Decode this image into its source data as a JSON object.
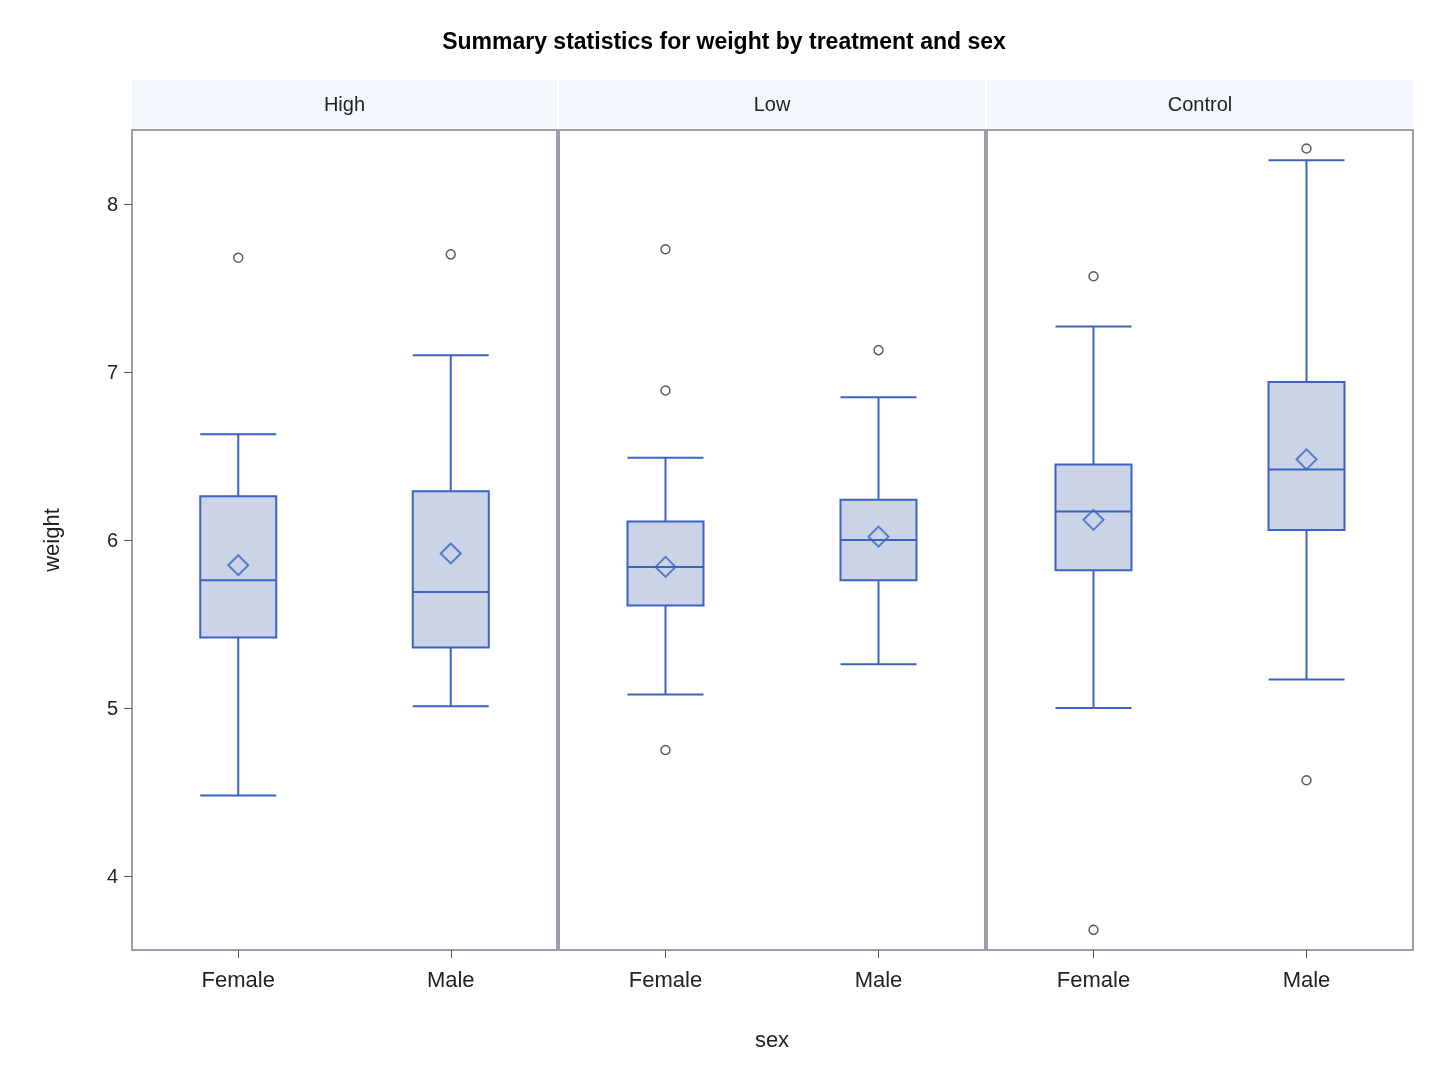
{
  "chart_data": [
    {
      "type": "box",
      "title": "Summary statistics for weight by treatment and sex",
      "subtitle": "High",
      "ylabel": "weight",
      "categories": [
        "Female",
        "Male"
      ],
      "ylim": [
        3.56,
        8.44
      ],
      "yticks": [
        4,
        5,
        6,
        7,
        8
      ],
      "grid": false,
      "series": [
        {
          "color": "#3b63c4",
          "boxes": [
            {
              "low": 4.48,
              "q1": 5.42,
              "median": 5.76,
              "q3": 6.26,
              "high": 6.63,
              "mean": 5.85,
              "outliers": [
                7.68
              ]
            },
            {
              "low": 5.01,
              "q1": 5.36,
              "median": 5.69,
              "q3": 6.29,
              "high": 7.1,
              "mean": 5.92,
              "outliers": [
                7.7
              ]
            }
          ]
        }
      ]
    },
    {
      "type": "box",
      "subtitle": "Low",
      "xlabel": "sex",
      "categories": [
        "Female",
        "Male"
      ],
      "ylim": [
        3.56,
        8.44
      ],
      "tick_labels": "x",
      "grid": false,
      "series": [
        {
          "color": "#3b63c4",
          "boxes": [
            {
              "low": 5.08,
              "q1": 5.61,
              "median": 5.84,
              "q3": 6.11,
              "high": 6.49,
              "mean": 5.84,
              "outliers": [
                7.73,
                6.89,
                4.75
              ]
            },
            {
              "low": 5.26,
              "q1": 5.76,
              "median": 6.0,
              "q3": 6.24,
              "high": 6.85,
              "mean": 6.02,
              "outliers": [
                7.13
              ]
            }
          ]
        }
      ]
    },
    {
      "type": "box",
      "subtitle": "Control",
      "categories": [
        "Female",
        "Male"
      ],
      "ylim": [
        3.56,
        8.44
      ],
      "tick_labels": "x",
      "grid": false,
      "series": [
        {
          "color": "#3b63c4",
          "boxes": [
            {
              "low": 5.0,
              "q1": 5.82,
              "median": 6.17,
              "q3": 6.45,
              "high": 7.27,
              "mean": 6.12,
              "outliers": [
                7.57,
                3.68
              ]
            },
            {
              "low": 5.17,
              "q1": 6.06,
              "median": 6.42,
              "q3": 6.94,
              "high": 8.26,
              "mean": 6.48,
              "outliers": [
                8.33,
                4.57
              ]
            }
          ]
        }
      ]
    }
  ]
}
